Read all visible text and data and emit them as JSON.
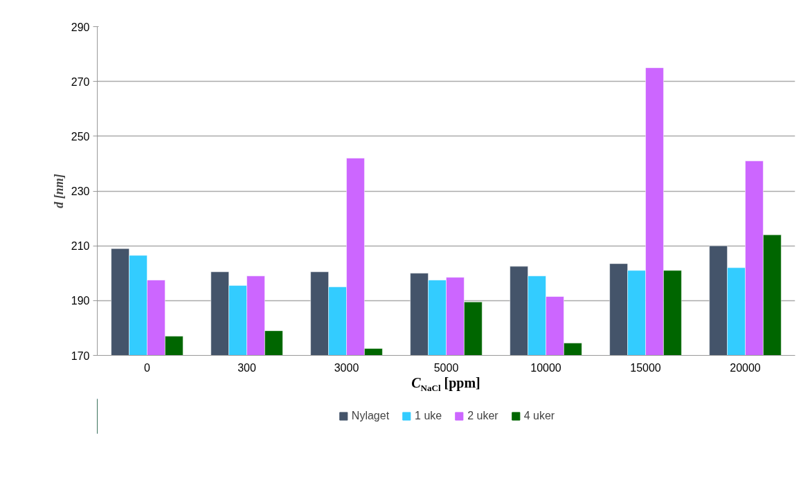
{
  "chart_data": {
    "type": "bar",
    "xlabel": "C$_{NaCl}$ [ppm]",
    "ylabel": "d [nm]",
    "categories": [
      "0",
      "300",
      "3000",
      "5000",
      "10000",
      "15000",
      "20000"
    ],
    "series": [
      {
        "name": "Nylaget",
        "color": "#44546a",
        "values": [
          209,
          200.5,
          200.5,
          200,
          202.5,
          203.5,
          210
        ]
      },
      {
        "name": "1 uke",
        "color": "#33ccff",
        "values": [
          206.5,
          195.5,
          195,
          197.5,
          199,
          201,
          202
        ]
      },
      {
        "name": "2 uker",
        "color": "#cc66ff",
        "values": [
          197.5,
          199,
          242,
          198.5,
          191.5,
          275,
          241
        ]
      },
      {
        "name": "4 uker",
        "color": "#006600",
        "values": [
          177,
          179,
          172.5,
          189.5,
          174.5,
          201,
          214
        ]
      }
    ],
    "ylim": [
      170,
      290
    ],
    "yticks": [
      170,
      190,
      210,
      230,
      250,
      270,
      290
    ],
    "grid": "y",
    "legend": "bottom"
  }
}
